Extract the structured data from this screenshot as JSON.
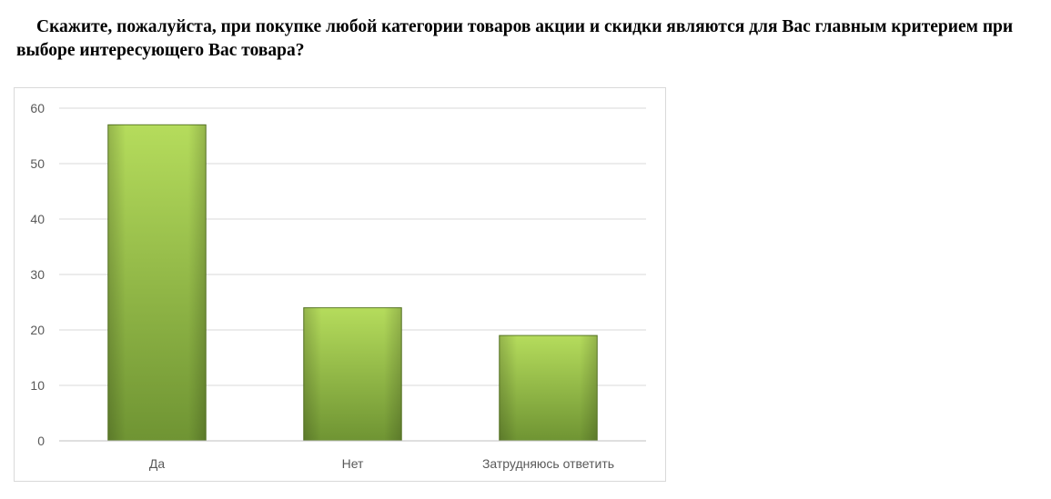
{
  "question": {
    "text": "Скажите, пожалуйста, при покупке любой категории товаров акции и скидки являются для Вас главным критерием при выборе интересующего Вас товара?"
  },
  "chart_data": {
    "type": "bar",
    "title": "",
    "xlabel": "",
    "ylabel": "",
    "categories": [
      "Да",
      "Нет",
      "Затрудняюсь ответить"
    ],
    "values": [
      57,
      24,
      19
    ],
    "ylim": [
      0,
      60
    ],
    "yticks": [
      0,
      10,
      20,
      30,
      40,
      50,
      60
    ],
    "grid": true,
    "legend": "none",
    "bar_color_top": "#b5dc5c",
    "bar_color_bottom": "#6f9433",
    "bar_edge_color": "#5e7d2a",
    "gridline_color": "#d9d9d9",
    "axis_label_color": "#595959"
  }
}
